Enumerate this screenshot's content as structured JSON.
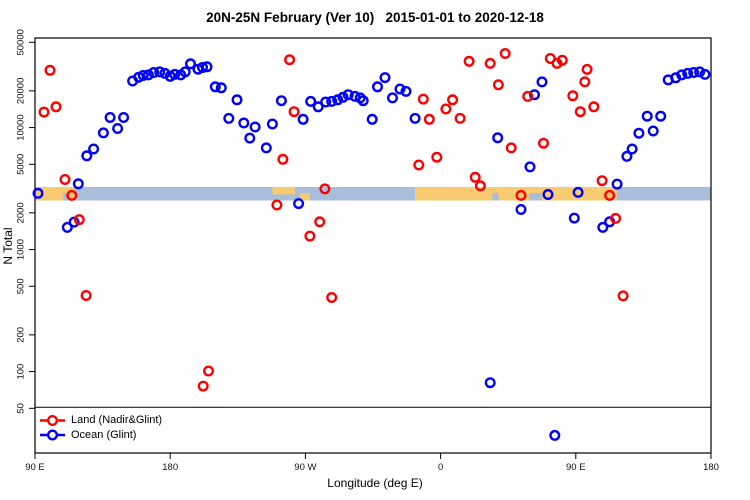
{
  "chart_data": {
    "type": "scatter",
    "title": "20N-25N February (Ver 10)   2015-01-01 to 2020-12-18",
    "xlabel": "Longitude (deg E)",
    "ylabel": "N Total",
    "y_scale": "log",
    "ylim": [
      50,
      50000
    ],
    "x_axis_note": "longitude axis runs eastward from 90E through 180, 90W, 0, 90E to 180; values stored on a continuous 90-540 scale",
    "x_range": [
      90,
      540
    ],
    "x_ticks": [
      {
        "value": 90,
        "label": "90 E"
      },
      {
        "value": 180,
        "label": "180"
      },
      {
        "value": 270,
        "label": "90 W"
      },
      {
        "value": 360,
        "label": "0"
      },
      {
        "value": 450,
        "label": "90 E"
      },
      {
        "value": 540,
        "label": "180"
      }
    ],
    "y_ticks": [
      50000,
      20000,
      10000,
      5000,
      2000,
      1000,
      500,
      200,
      100,
      50
    ],
    "legend_position": "bottom-left",
    "series": [
      {
        "name": "Land (Nadir&Glint)",
        "color": "#FF0000",
        "marker": "open-circle",
        "points": [
          [
            100,
            29500
          ],
          [
            96,
            13400
          ],
          [
            104,
            14800
          ],
          [
            110,
            3750
          ],
          [
            114.5,
            2780
          ],
          [
            119.5,
            1760
          ],
          [
            124,
            420
          ],
          [
            202,
            76
          ],
          [
            205.5,
            101
          ],
          [
            251,
            2320
          ],
          [
            255,
            5500
          ],
          [
            259.5,
            36000
          ],
          [
            262.5,
            13500
          ],
          [
            273,
            1290
          ],
          [
            279.5,
            1690
          ],
          [
            283,
            3140
          ],
          [
            287.5,
            405
          ],
          [
            345.5,
            4930
          ],
          [
            348.5,
            17100
          ],
          [
            352.5,
            11700
          ],
          [
            357.5,
            5720
          ],
          [
            363.5,
            14200
          ],
          [
            368,
            16900
          ],
          [
            373,
            11900
          ],
          [
            379,
            34900
          ],
          [
            383,
            3910
          ],
          [
            386.5,
            3330
          ],
          [
            393,
            33600
          ],
          [
            398.5,
            22400
          ],
          [
            403,
            40500
          ],
          [
            407,
            6810
          ],
          [
            413.5,
            2780
          ],
          [
            418,
            18000
          ],
          [
            428.5,
            7440
          ],
          [
            433,
            36800
          ],
          [
            437.5,
            33600
          ],
          [
            441,
            35600
          ],
          [
            448,
            18200
          ],
          [
            453,
            13500
          ],
          [
            456,
            23700
          ],
          [
            457.5,
            30000
          ],
          [
            462,
            14800
          ],
          [
            467.5,
            3670
          ],
          [
            472.5,
            2780
          ],
          [
            476.5,
            1800
          ],
          [
            481.5,
            417
          ]
        ]
      },
      {
        "name": "Ocean (Glint)",
        "color": "#0000FF",
        "marker": "open-circle",
        "points": [
          [
            92,
            2890
          ],
          [
            111.5,
            1520
          ],
          [
            116,
            1680
          ],
          [
            118.8,
            3460
          ],
          [
            124.5,
            5870
          ],
          [
            129,
            6680
          ],
          [
            135.5,
            9050
          ],
          [
            140,
            12100
          ],
          [
            145,
            9820
          ],
          [
            149,
            12100
          ],
          [
            155,
            24100
          ],
          [
            159,
            25900
          ],
          [
            162,
            26700
          ],
          [
            165.5,
            27000
          ],
          [
            169,
            28300
          ],
          [
            173,
            28600
          ],
          [
            176.5,
            27800
          ],
          [
            180,
            26300
          ],
          [
            183,
            27300
          ],
          [
            187,
            27000
          ],
          [
            190,
            28600
          ],
          [
            193.5,
            33300
          ],
          [
            198.5,
            30100
          ],
          [
            201.5,
            31100
          ],
          [
            204.5,
            31500
          ],
          [
            210,
            21600
          ],
          [
            214,
            21200
          ],
          [
            219,
            11900
          ],
          [
            224.5,
            16900
          ],
          [
            229,
            10900
          ],
          [
            233,
            8200
          ],
          [
            236.5,
            10100
          ],
          [
            244,
            6810
          ],
          [
            248,
            10700
          ],
          [
            254,
            16600
          ],
          [
            265.5,
            2380
          ],
          [
            268.5,
            11700
          ],
          [
            273.5,
            16400
          ],
          [
            278.5,
            14800
          ],
          [
            283.5,
            16200
          ],
          [
            287.5,
            16400
          ],
          [
            291.5,
            16900
          ],
          [
            295,
            17700
          ],
          [
            298.5,
            18600
          ],
          [
            303,
            18000
          ],
          [
            306.5,
            17500
          ],
          [
            308.5,
            16600
          ],
          [
            314.5,
            11700
          ],
          [
            318,
            21600
          ],
          [
            323,
            25700
          ],
          [
            328,
            17500
          ],
          [
            333,
            20700
          ],
          [
            337,
            19800
          ],
          [
            343,
            11900
          ],
          [
            393,
            81
          ],
          [
            398,
            8240
          ],
          [
            413.5,
            2130
          ],
          [
            419.5,
            4760
          ],
          [
            422.5,
            18600
          ],
          [
            427.5,
            23700
          ],
          [
            431.5,
            2830
          ],
          [
            436,
            30
          ],
          [
            449,
            1810
          ],
          [
            451.5,
            2940
          ],
          [
            468,
            1520
          ],
          [
            472.5,
            1690
          ],
          [
            477.5,
            3440
          ],
          [
            484,
            5800
          ],
          [
            487.5,
            6680
          ],
          [
            492,
            9000
          ],
          [
            497.5,
            12400
          ],
          [
            501.5,
            9370
          ],
          [
            506.5,
            12400
          ],
          [
            511.5,
            24600
          ],
          [
            516.5,
            25600
          ],
          [
            520.5,
            27000
          ],
          [
            524.5,
            27800
          ],
          [
            528.5,
            28300
          ],
          [
            532.5,
            28600
          ],
          [
            536,
            27300
          ]
        ]
      }
    ],
    "map_strip": {
      "description": "horizontal land/ocean map band across the plot near N=2600-3300",
      "land_color": "#F8CB71",
      "ocean_color": "#A9BEDB",
      "segments": [
        {
          "from": 90,
          "to": 116.5,
          "surface": "land",
          "extent": "full"
        },
        {
          "from": 116.5,
          "to": 343,
          "surface": "ocean",
          "extent": "full"
        },
        {
          "from": 343,
          "to": 477.3,
          "surface": "land",
          "extent": "full"
        },
        {
          "from": 477.3,
          "to": 540,
          "surface": "ocean",
          "extent": "full"
        },
        {
          "from": 108.5,
          "to": 112,
          "surface": "ocean",
          "extent": "bottom"
        },
        {
          "from": 248,
          "to": 263,
          "surface": "land",
          "extent": "top"
        },
        {
          "from": 266.5,
          "to": 273,
          "surface": "land",
          "extent": "bottom"
        },
        {
          "from": 394.5,
          "to": 398.5,
          "surface": "ocean",
          "extent": "bottom"
        },
        {
          "from": 419,
          "to": 427.5,
          "surface": "ocean",
          "extent": "bottom"
        }
      ]
    }
  }
}
